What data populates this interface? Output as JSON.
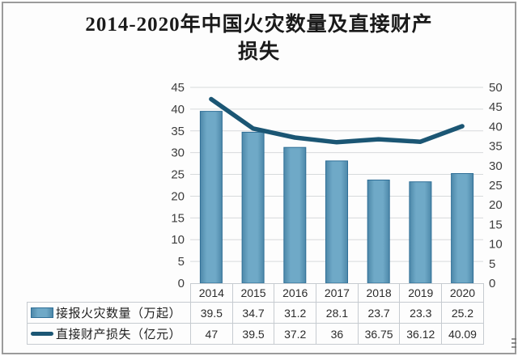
{
  "title_lines": [
    "2014-2020年中国火灾数量及直接财产",
    "损失"
  ],
  "colors": {
    "title_text": "#1a1a1a",
    "frame_border": "#9b9b9b",
    "grid": "#d7dadc",
    "axis_text": "#3d3d3d",
    "table_border": "#c6cbd0",
    "table_text": "#2b2b2b",
    "bar_fill": "#6fa9c7",
    "bar_fill_edge": "#4d88a9",
    "bar_border": "#2f6f97",
    "line": "#1b5674"
  },
  "chart_data": {
    "type": "bar+line",
    "title": "2014-2020年中国火灾数量及直接财产损失",
    "categories": [
      "2014",
      "2015",
      "2016",
      "2017",
      "2018",
      "2019",
      "2020"
    ],
    "series": [
      {
        "name": "接报火灾数量（万起）",
        "type": "bar",
        "axis": "left",
        "values": [
          39.5,
          34.7,
          31.2,
          28.1,
          23.7,
          23.3,
          25.2
        ]
      },
      {
        "name": "直接财产损失（亿元）",
        "type": "line",
        "axis": "right",
        "values": [
          47,
          39.5,
          37.2,
          36,
          36.75,
          36.12,
          40.09
        ]
      }
    ],
    "left_axis": {
      "min": 0,
      "max": 45,
      "step": 5
    },
    "right_axis": {
      "min": 0,
      "max": 50,
      "step": 5
    },
    "grid": true,
    "legend_position": "bottom-table",
    "xlabel": "",
    "ylabel_left": "",
    "ylabel_right": ""
  }
}
